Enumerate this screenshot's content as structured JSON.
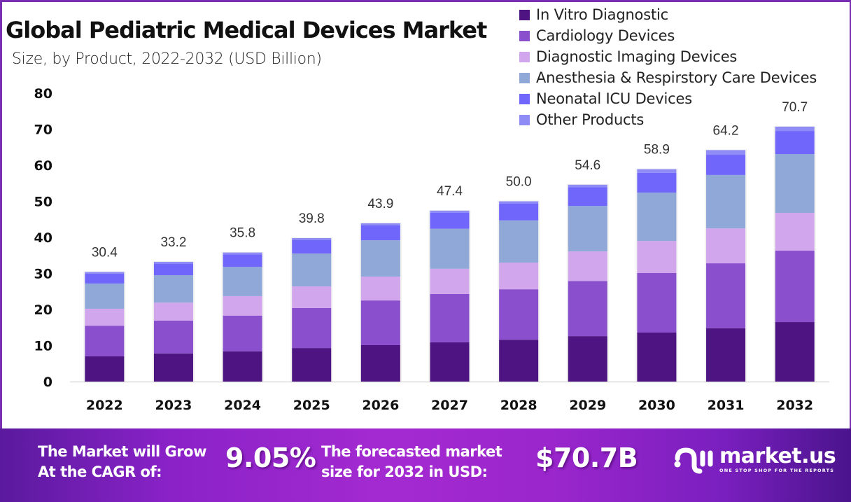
{
  "header": {
    "title": "Global Pediatric Medical Devices Market",
    "subtitle": "Size, by Product, 2022-2032 (USD Billion)"
  },
  "chart_data": {
    "type": "bar",
    "stacked": true,
    "title": "Global Pediatric Medical Devices Market",
    "subtitle": "Size, by Product, 2022-2032 (USD Billion)",
    "xlabel": "",
    "ylabel": "",
    "ylim": [
      0,
      80
    ],
    "yticks": [
      0,
      10,
      20,
      30,
      40,
      50,
      60,
      70,
      80
    ],
    "grid": false,
    "legend_position": "top-right",
    "categories": [
      "2022",
      "2023",
      "2024",
      "2025",
      "2026",
      "2027",
      "2028",
      "2029",
      "2030",
      "2031",
      "2032"
    ],
    "totals": [
      "30.4",
      "33.2",
      "35.8",
      "39.8",
      "43.9",
      "47.4",
      "50.0",
      "54.6",
      "58.9",
      "64.2",
      "70.7"
    ],
    "series": [
      {
        "name": "In Vitro Diagnostic",
        "color": "#4e1582",
        "values": [
          7.0,
          7.8,
          8.4,
          9.3,
          10.1,
          10.9,
          11.6,
          12.6,
          13.6,
          14.8,
          16.5
        ]
      },
      {
        "name": "Cardiology Devices",
        "color": "#8a4fcd",
        "values": [
          8.5,
          9.1,
          9.9,
          11.1,
          12.4,
          13.4,
          14.0,
          15.3,
          16.5,
          18.0,
          19.8
        ]
      },
      {
        "name": "Diagnostic Imaging Devices",
        "color": "#d2a6ec",
        "values": [
          4.7,
          5.0,
          5.4,
          6.0,
          6.6,
          7.0,
          7.4,
          8.2,
          8.9,
          9.7,
          10.5
        ]
      },
      {
        "name": "Anesthesia & Respirstory Care Devices",
        "color": "#8fa8d8",
        "values": [
          7.0,
          7.6,
          8.1,
          9.1,
          10.1,
          11.1,
          11.7,
          12.6,
          13.4,
          14.8,
          16.3
        ]
      },
      {
        "name": "Neonatal ICU Devices",
        "color": "#7066fb",
        "values": [
          2.7,
          3.2,
          3.5,
          3.8,
          4.1,
          4.4,
          4.7,
          5.2,
          5.5,
          5.6,
          6.4
        ]
      },
      {
        "name": "Other Products",
        "color": "#8f8cf5",
        "values": [
          0.5,
          0.5,
          0.5,
          0.5,
          0.6,
          0.6,
          0.6,
          0.7,
          1.0,
          1.3,
          1.2
        ]
      }
    ]
  },
  "banner": {
    "cagr_label_line1": "The Market will Grow",
    "cagr_label_line2": "At the CAGR of:",
    "cagr_value": "9.05%",
    "forecast_label_line1": "The forecasted market",
    "forecast_label_line2": "size for 2032 in USD:",
    "forecast_value": "$70.7B",
    "logo_name": "market.us",
    "logo_tagline": "ONE STOP SHOP FOR THE REPORTS",
    "logo_icon": "market-us-logo-icon"
  }
}
